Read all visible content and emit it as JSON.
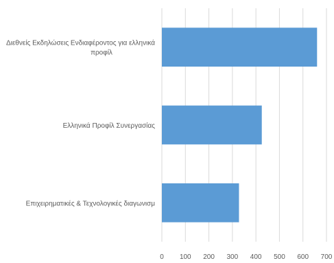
{
  "chart_data": {
    "type": "bar",
    "orientation": "horizontal",
    "categories": [
      [
        "Διεθνείς Εκδηλώσεις Ενδιαφέροντος για ελληνικά",
        "προφίλ"
      ],
      [
        "Ελληνικά Προφίλ Συνεργασίας"
      ],
      [
        "Επιχειρηματικές & Τεχνολογικές διαγωνισμ"
      ]
    ],
    "values": [
      660,
      425,
      328
    ],
    "xlim": [
      0,
      700
    ],
    "xticks": [
      "0",
      "100",
      "200",
      "300",
      "400",
      "500",
      "600",
      "700"
    ],
    "grid": true,
    "bar_color": "#5b9bd5",
    "title": "",
    "xlabel": "",
    "ylabel": ""
  }
}
